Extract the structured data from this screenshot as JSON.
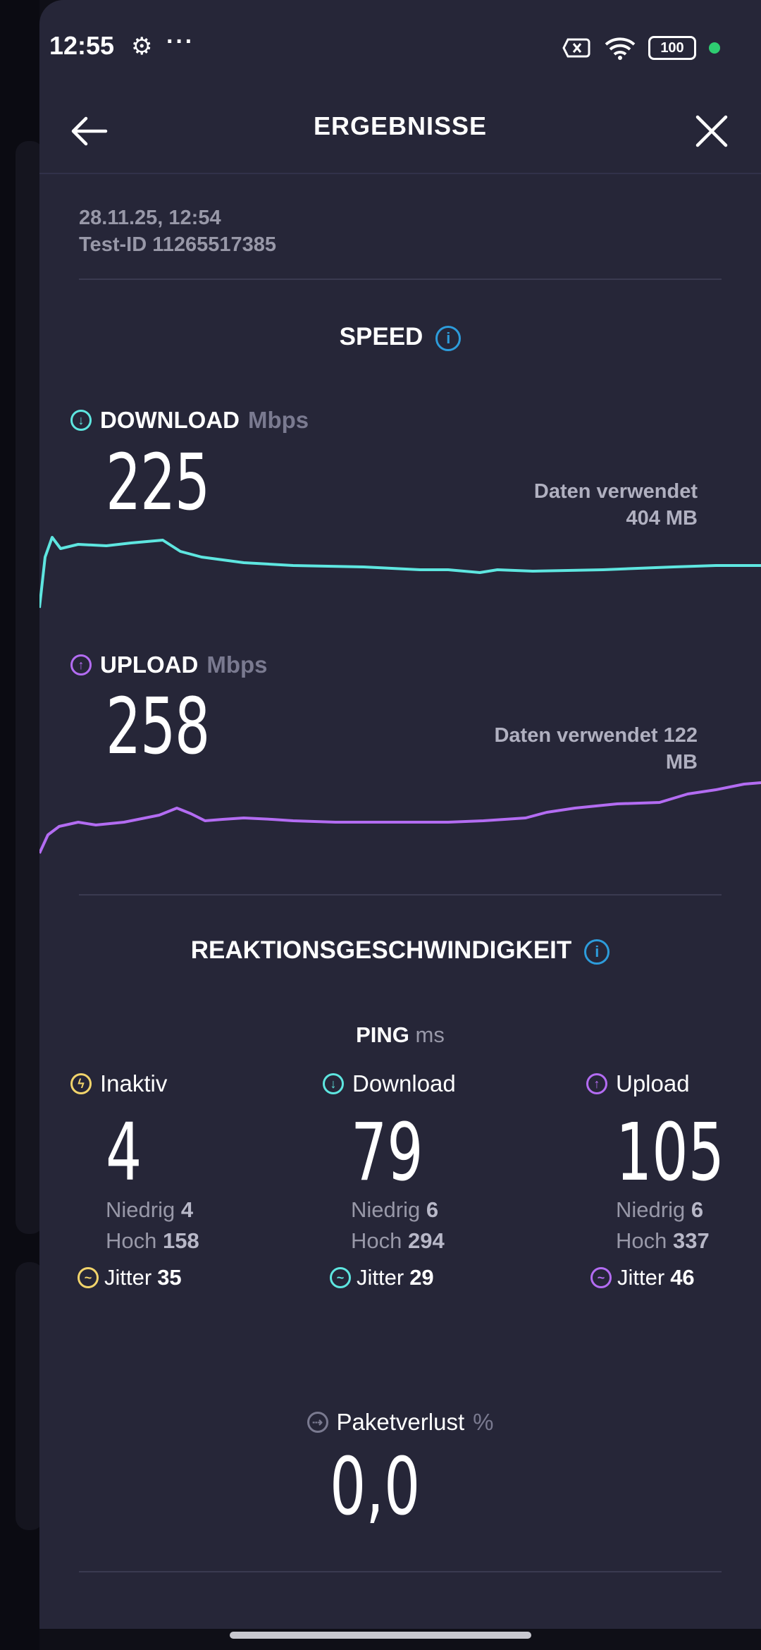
{
  "status_bar": {
    "time": "12:55",
    "battery": "100"
  },
  "header": {
    "title": "ERGEBNISSE"
  },
  "test_meta": {
    "datetime": "28.11.25, 12:54",
    "test_id": "Test-ID 11265517385"
  },
  "speed": {
    "section_title": "SPEED",
    "download": {
      "label": "DOWNLOAD",
      "unit": "Mbps",
      "value": "225",
      "data_used_label": "Daten verwendet",
      "data_used_value": "404 MB",
      "color": "#5ee6e0"
    },
    "upload": {
      "label": "UPLOAD",
      "unit": "Mbps",
      "value": "258",
      "data_used_line1": "Daten verwendet 122",
      "data_used_line2": "MB",
      "color": "#b36cf2"
    }
  },
  "responsiveness": {
    "section_title": "REAKTIONSGESCHWINDIGKEIT",
    "ping_label": "PING",
    "ping_unit": "ms",
    "columns": [
      {
        "label": "Inaktiv",
        "value": "4",
        "low_label": "Niedrig",
        "low": "4",
        "high_label": "Hoch",
        "high": "158",
        "jitter_label": "Jitter",
        "jitter": "35",
        "color": "#f2d46b"
      },
      {
        "label": "Download",
        "value": "79",
        "low_label": "Niedrig",
        "low": "6",
        "high_label": "Hoch",
        "high": "294",
        "jitter_label": "Jitter",
        "jitter": "29",
        "color": "#5ee6e0"
      },
      {
        "label": "Upload",
        "value": "105",
        "low_label": "Niedrig",
        "low": "6",
        "high_label": "Hoch",
        "high": "337",
        "jitter_label": "Jitter",
        "jitter": "46",
        "color": "#b36cf2"
      }
    ]
  },
  "packet_loss": {
    "label": "Paketverlust",
    "unit": "%",
    "value": "0,0"
  }
}
